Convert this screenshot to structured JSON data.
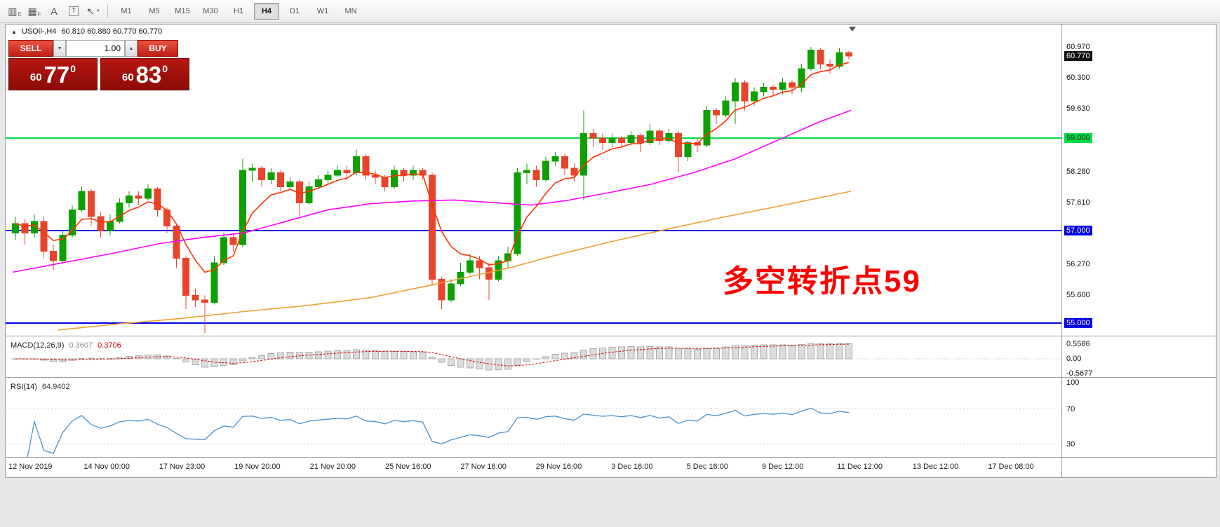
{
  "icons": {
    "dropdown_arrow": "▼",
    "spinner_up": "▲",
    "collapse_arrow": "▲",
    "shift_marker": "▼"
  },
  "toolbar": {
    "tools": [
      {
        "id": "chart-style",
        "glyph": "▥",
        "sub": "E",
        "boxed": false,
        "dropdown": false
      },
      {
        "id": "grid",
        "glyph": "▦",
        "sub": "F",
        "boxed": false,
        "dropdown": false
      },
      {
        "id": "text-label",
        "glyph": "A",
        "sub": "",
        "boxed": false,
        "dropdown": false
      },
      {
        "id": "text-box",
        "glyph": "T",
        "sub": "",
        "boxed": true,
        "dropdown": false
      },
      {
        "id": "pointer-tool",
        "glyph": "↖",
        "sub": "",
        "boxed": false,
        "dropdown": true
      }
    ],
    "timeframes": [
      "M1",
      "M5",
      "M15",
      "M30",
      "H1",
      "H4",
      "D1",
      "W1",
      "MN"
    ],
    "active_timeframe": "H4"
  },
  "chart": {
    "title_symbol": "USOil-,H4",
    "title_ohlc": "60.810 60.880 60.770 60.770",
    "trade_panel": {
      "sell_label": "SELL",
      "buy_label": "BUY",
      "volume": "1.00",
      "sell_price": {
        "prefix": "60",
        "big": "77",
        "sup": "0"
      },
      "buy_price": {
        "prefix": "60",
        "big": "83",
        "sup": "0"
      }
    },
    "annotation": "多空转折点59",
    "annotation_color": "#FF0000"
  },
  "chart_data": {
    "type": "candlestick",
    "symbol": "USOil",
    "timeframe": "H4",
    "up_color": "#0DA000",
    "down_color": "#E8442C",
    "candles_ohlc": [
      [
        56.95,
        57.3,
        56.8,
        57.15
      ],
      [
        57.15,
        57.25,
        56.7,
        56.95
      ],
      [
        56.95,
        57.35,
        56.85,
        57.2
      ],
      [
        57.2,
        57.3,
        56.4,
        56.55
      ],
      [
        56.55,
        56.7,
        56.15,
        56.35
      ],
      [
        56.35,
        57.0,
        56.3,
        56.9
      ],
      [
        56.9,
        57.55,
        56.85,
        57.45
      ],
      [
        57.45,
        57.95,
        57.4,
        57.85
      ],
      [
        57.85,
        57.9,
        57.1,
        57.3
      ],
      [
        57.3,
        57.4,
        56.85,
        57.0
      ],
      [
        57.0,
        57.35,
        56.9,
        57.2
      ],
      [
        57.2,
        57.7,
        57.15,
        57.6
      ],
      [
        57.6,
        57.85,
        57.5,
        57.75
      ],
      [
        57.75,
        57.85,
        57.55,
        57.7
      ],
      [
        57.7,
        58.0,
        57.65,
        57.9
      ],
      [
        57.9,
        57.95,
        57.3,
        57.45
      ],
      [
        57.45,
        57.5,
        56.95,
        57.1
      ],
      [
        57.1,
        57.15,
        56.2,
        56.4
      ],
      [
        56.4,
        56.45,
        55.3,
        55.6
      ],
      [
        55.6,
        55.75,
        55.35,
        55.5
      ],
      [
        55.5,
        55.6,
        54.78,
        55.45
      ],
      [
        55.45,
        56.45,
        55.4,
        56.3
      ],
      [
        56.3,
        56.95,
        56.25,
        56.85
      ],
      [
        56.85,
        56.95,
        56.55,
        56.7
      ],
      [
        56.7,
        58.55,
        56.65,
        58.3
      ],
      [
        58.3,
        58.45,
        58.05,
        58.35
      ],
      [
        58.35,
        58.4,
        57.95,
        58.1
      ],
      [
        58.1,
        58.35,
        58.0,
        58.25
      ],
      [
        58.25,
        58.3,
        57.85,
        57.95
      ],
      [
        57.95,
        58.15,
        57.9,
        58.05
      ],
      [
        58.05,
        58.1,
        57.3,
        57.6
      ],
      [
        57.6,
        58.05,
        57.55,
        57.95
      ],
      [
        57.95,
        58.2,
        57.9,
        58.1
      ],
      [
        58.1,
        58.3,
        58.0,
        58.2
      ],
      [
        58.2,
        58.4,
        58.15,
        58.3
      ],
      [
        58.3,
        58.4,
        58.1,
        58.25
      ],
      [
        58.25,
        58.75,
        58.2,
        58.6
      ],
      [
        58.6,
        58.65,
        58.1,
        58.2
      ],
      [
        58.2,
        58.3,
        58.0,
        58.15
      ],
      [
        58.15,
        58.2,
        57.85,
        57.95
      ],
      [
        57.95,
        58.4,
        57.9,
        58.3
      ],
      [
        58.3,
        58.35,
        58.05,
        58.2
      ],
      [
        58.2,
        58.4,
        58.1,
        58.3
      ],
      [
        58.3,
        58.35,
        58.1,
        58.2
      ],
      [
        58.2,
        58.25,
        55.8,
        55.95
      ],
      [
        55.95,
        56.0,
        55.3,
        55.5
      ],
      [
        55.5,
        55.95,
        55.45,
        55.85
      ],
      [
        55.85,
        56.3,
        55.8,
        56.1
      ],
      [
        56.1,
        56.5,
        56.05,
        56.35
      ],
      [
        56.35,
        56.45,
        55.95,
        56.2
      ],
      [
        56.2,
        56.3,
        55.5,
        55.95
      ],
      [
        55.95,
        56.45,
        55.9,
        56.35
      ],
      [
        56.35,
        56.65,
        56.2,
        56.5
      ],
      [
        56.5,
        58.35,
        56.45,
        58.25
      ],
      [
        58.25,
        58.45,
        58.0,
        58.3
      ],
      [
        58.3,
        58.4,
        57.95,
        58.1
      ],
      [
        58.1,
        58.6,
        58.05,
        58.5
      ],
      [
        58.5,
        58.7,
        58.4,
        58.6
      ],
      [
        58.6,
        58.65,
        58.2,
        58.35
      ],
      [
        58.35,
        58.45,
        58.05,
        58.2
      ],
      [
        58.2,
        59.6,
        57.65,
        59.1
      ],
      [
        59.1,
        59.2,
        58.8,
        59.0
      ],
      [
        59.0,
        59.1,
        58.75,
        58.9
      ],
      [
        58.9,
        59.1,
        58.8,
        59.0
      ],
      [
        59.0,
        59.05,
        58.8,
        58.9
      ],
      [
        58.9,
        59.15,
        58.85,
        59.05
      ],
      [
        59.05,
        59.1,
        58.7,
        58.9
      ],
      [
        58.9,
        59.3,
        58.85,
        59.15
      ],
      [
        59.15,
        59.2,
        58.85,
        58.95
      ],
      [
        58.95,
        59.2,
        58.9,
        59.1
      ],
      [
        59.1,
        59.15,
        58.25,
        58.6
      ],
      [
        58.6,
        58.95,
        58.5,
        58.9
      ],
      [
        58.9,
        59.0,
        58.7,
        58.85
      ],
      [
        58.85,
        59.7,
        58.8,
        59.6
      ],
      [
        59.6,
        59.65,
        59.3,
        59.5
      ],
      [
        59.5,
        59.9,
        59.45,
        59.8
      ],
      [
        59.8,
        60.3,
        59.3,
        60.2
      ],
      [
        60.2,
        60.25,
        59.6,
        59.8
      ],
      [
        59.8,
        60.1,
        59.7,
        60.0
      ],
      [
        60.0,
        60.2,
        59.9,
        60.1
      ],
      [
        60.1,
        60.15,
        59.9,
        60.05
      ],
      [
        60.05,
        60.3,
        59.95,
        60.2
      ],
      [
        60.2,
        60.25,
        59.95,
        60.1
      ],
      [
        60.1,
        60.6,
        60.0,
        60.5
      ],
      [
        60.5,
        60.97,
        60.45,
        60.9
      ],
      [
        60.9,
        60.95,
        60.5,
        60.6
      ],
      [
        60.6,
        60.7,
        60.4,
        60.55
      ],
      [
        60.55,
        60.95,
        60.5,
        60.85
      ],
      [
        60.85,
        60.88,
        60.7,
        60.77
      ]
    ],
    "h_lines": [
      {
        "price": 59.0,
        "label": "59.000",
        "color": "#00DC4B",
        "badge": "green"
      },
      {
        "price": 57.0,
        "label": "57.000",
        "color": "#0000F0",
        "badge": "blue"
      },
      {
        "price": 55.0,
        "label": "55.000",
        "color": "#0000F0",
        "badge": "blue"
      }
    ],
    "current_price": {
      "price": 60.77,
      "label": "60.770"
    },
    "axis_prices": [
      {
        "price": 60.97,
        "label": "60.970"
      },
      {
        "price": 60.3,
        "label": "60.300"
      },
      {
        "price": 59.63,
        "label": "59.630"
      },
      {
        "price": 58.28,
        "label": "58.280"
      },
      {
        "price": 57.61,
        "label": "57.610"
      },
      {
        "price": 56.27,
        "label": "56.270"
      },
      {
        "price": 55.6,
        "label": "55.600"
      }
    ],
    "ma_fast": {
      "color": "#FF3300",
      "period": 6
    },
    "ma_mid": {
      "color": "#FF00FF",
      "points": [
        [
          10,
          56.1
        ],
        [
          80,
          56.3
        ],
        [
          150,
          56.5
        ],
        [
          220,
          56.72
        ],
        [
          280,
          56.85
        ],
        [
          340,
          56.95
        ],
        [
          400,
          57.2
        ],
        [
          460,
          57.45
        ],
        [
          520,
          57.58
        ],
        [
          580,
          57.64
        ],
        [
          640,
          57.66
        ],
        [
          700,
          57.6
        ],
        [
          750,
          57.55
        ],
        [
          800,
          57.65
        ],
        [
          860,
          57.82
        ],
        [
          920,
          58.0
        ],
        [
          980,
          58.25
        ],
        [
          1040,
          58.55
        ],
        [
          1100,
          58.95
        ],
        [
          1160,
          59.35
        ],
        [
          1205,
          59.6
        ]
      ]
    },
    "ma_slow": {
      "color": "#F0A030",
      "points": [
        [
          75,
          54.85
        ],
        [
          160,
          54.98
        ],
        [
          250,
          55.1
        ],
        [
          340,
          55.25
        ],
        [
          430,
          55.38
        ],
        [
          520,
          55.55
        ],
        [
          600,
          55.8
        ],
        [
          660,
          56.0
        ],
        [
          720,
          56.2
        ],
        [
          780,
          56.45
        ],
        [
          860,
          56.75
        ],
        [
          940,
          57.02
        ],
        [
          1020,
          57.28
        ],
        [
          1100,
          57.52
        ],
        [
          1205,
          57.85
        ]
      ]
    },
    "macd": {
      "label_name": "MACD(12,26,9)",
      "label_main": "0.3607",
      "label_signal": "0.3706",
      "fast": 12,
      "slow": 26,
      "signal": 9,
      "axis": [
        {
          "v": 0.5586,
          "label": "0.5586"
        },
        {
          "v": 0,
          "label": "0.00"
        },
        {
          "v": -0.5677,
          "label": "-0.5677"
        }
      ],
      "hist_color": "#DCDCDC",
      "hist_border": "#ABABAB",
      "signal_color": "#D40000"
    },
    "rsi": {
      "label_name": "RSI(14)",
      "label_value": "64.9402",
      "period": 14,
      "axis": [
        {
          "v": 100,
          "label": "100"
        },
        {
          "v": 70,
          "label": "70"
        },
        {
          "v": 30,
          "label": "30"
        }
      ],
      "levels": [
        70,
        30
      ],
      "line_color": "#4791CE"
    },
    "time_labels": [
      "12 Nov 2019",
      "14 Nov 00:00",
      "17 Nov 23:00",
      "19 Nov 20:00",
      "21 Nov 20:00",
      "25 Nov 16:00",
      "27 Nov 16:00",
      "29 Nov 16:00",
      "3 Dec 16:00",
      "5 Dec 16:00",
      "9 Dec 12:00",
      "11 Dec 12:00",
      "13 Dec 12:00",
      "17 Dec 08:00"
    ]
  }
}
